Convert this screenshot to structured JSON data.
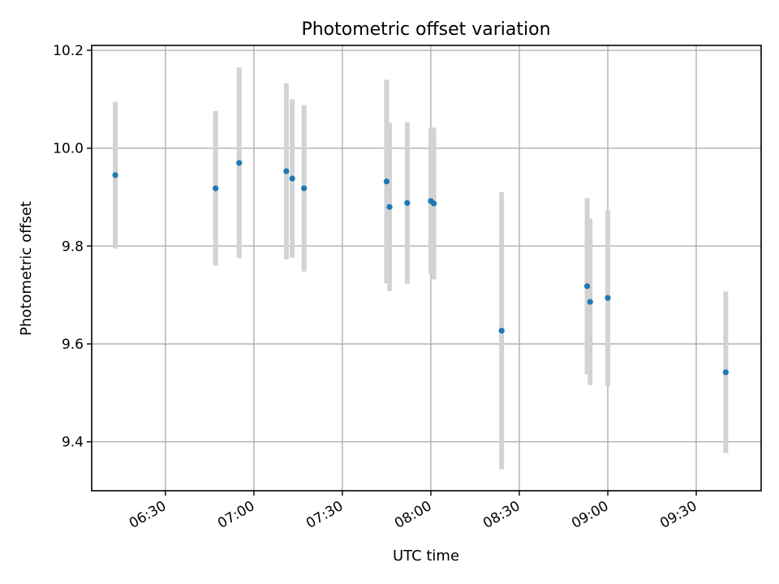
{
  "chart_data": {
    "type": "scatter",
    "title": "Photometric offset variation",
    "xlabel": "UTC time",
    "ylabel": "Photometric offset",
    "x_ticks": [
      "06:30",
      "07:00",
      "07:30",
      "08:00",
      "08:30",
      "09:00",
      "09:30"
    ],
    "y_ticks": [
      "9.4",
      "9.6",
      "9.8",
      "10.0",
      "10.2"
    ],
    "xlim": [
      "06:05",
      "09:52"
    ],
    "ylim": [
      9.3,
      10.21
    ],
    "grid": true,
    "point_color": "#1f77b4",
    "errorbar_color": "#d3d3d3",
    "points": [
      {
        "x": "06:13",
        "y": 9.945,
        "err": 0.15
      },
      {
        "x": "06:47",
        "y": 9.918,
        "err": 0.158
      },
      {
        "x": "06:55",
        "y": 9.97,
        "err": 0.195
      },
      {
        "x": "07:11",
        "y": 9.953,
        "err": 0.18
      },
      {
        "x": "07:13",
        "y": 9.938,
        "err": 0.162
      },
      {
        "x": "07:17",
        "y": 9.918,
        "err": 0.17
      },
      {
        "x": "07:45",
        "y": 9.932,
        "err": 0.208
      },
      {
        "x": "07:46",
        "y": 9.88,
        "err": 0.172
      },
      {
        "x": "07:52",
        "y": 9.888,
        "err": 0.165
      },
      {
        "x": "08:00",
        "y": 9.892,
        "err": 0.15
      },
      {
        "x": "08:01",
        "y": 9.887,
        "err": 0.155
      },
      {
        "x": "08:24",
        "y": 9.627,
        "err": 0.283
      },
      {
        "x": "08:53",
        "y": 9.718,
        "err": 0.18
      },
      {
        "x": "08:54",
        "y": 9.686,
        "err": 0.17
      },
      {
        "x": "09:00",
        "y": 9.694,
        "err": 0.18
      },
      {
        "x": "09:40",
        "y": 9.542,
        "err": 0.165
      }
    ]
  }
}
